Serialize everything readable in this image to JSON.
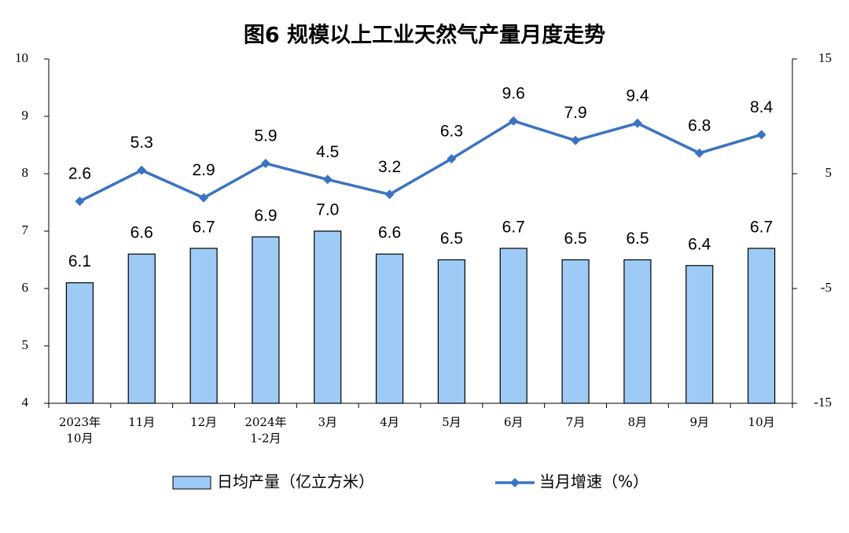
{
  "chart_data": {
    "type": "bar",
    "title": "图6  规模以上工业天然气产量月度走势",
    "categories": [
      "2023年\n10月",
      "11月",
      "12月",
      "2024年\n1-2月",
      "3月",
      "4月",
      "5月",
      "6月",
      "7月",
      "8月",
      "9月",
      "10月"
    ],
    "series": [
      {
        "name": "日均产量（亿立方米）",
        "type": "bar",
        "color": "#9dcbf6",
        "values": [
          6.1,
          6.6,
          6.7,
          6.9,
          7,
          6.6,
          6.5,
          6.7,
          6.5,
          6.5,
          6.4,
          6.7
        ],
        "value_labels": [
          "6.1",
          "6.6",
          "6.7",
          "6.9",
          "7.0",
          "6.6",
          "6.5",
          "6.7",
          "6.5",
          "6.5",
          "6.4",
          "6.7"
        ]
      },
      {
        "name": "当月增速（%）",
        "type": "line",
        "axis": "y2",
        "color": "#3b73c3",
        "values": [
          2.6,
          5.3,
          2.9,
          5.9,
          4.5,
          3.2,
          6.3,
          9.6,
          7.9,
          9.4,
          6.8,
          8.4
        ]
      }
    ],
    "ylim": [
      4,
      10
    ],
    "yticks": [
      4,
      5,
      6,
      7,
      8,
      9,
      10
    ],
    "y2lim": [
      -15,
      15
    ],
    "y2ticks": [
      -15,
      -5,
      5,
      15
    ],
    "legend": "bottom"
  }
}
